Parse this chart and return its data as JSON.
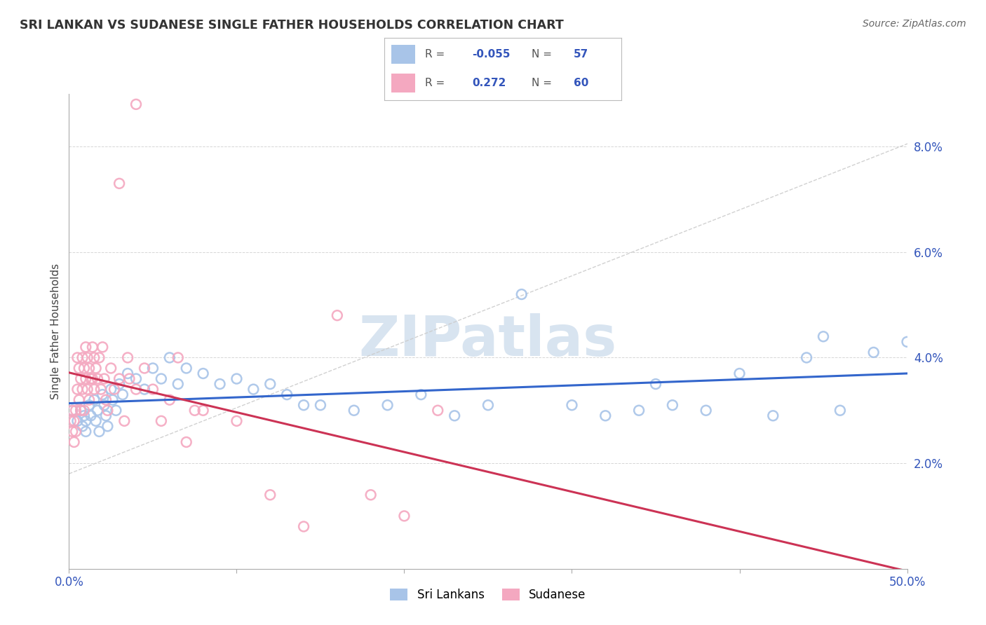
{
  "title": "SRI LANKAN VS SUDANESE SINGLE FATHER HOUSEHOLDS CORRELATION CHART",
  "source": "Source: ZipAtlas.com",
  "ylabel_label": "Single Father Households",
  "xlim": [
    0.0,
    0.5
  ],
  "ylim": [
    0.0,
    0.09
  ],
  "x_ticks": [
    0.0,
    0.1,
    0.2,
    0.3,
    0.4,
    0.5
  ],
  "x_tick_labels": [
    "0.0%",
    "",
    "",
    "",
    "",
    "50.0%"
  ],
  "y_ticks": [
    0.02,
    0.04,
    0.06,
    0.08
  ],
  "y_tick_labels": [
    "2.0%",
    "4.0%",
    "6.0%",
    "8.0%"
  ],
  "blue_R": "-0.055",
  "blue_N": "57",
  "pink_R": "0.272",
  "pink_N": "60",
  "blue_color": "#a8c4e8",
  "pink_color": "#f4a8c0",
  "blue_line_color": "#3366cc",
  "pink_line_color": "#cc3355",
  "diag_line_color": "#cccccc",
  "grid_color": "#cccccc",
  "watermark_color": "#d8e4f0",
  "tick_color": "#3355bb",
  "sri_lankans_x": [
    0.002,
    0.005,
    0.007,
    0.008,
    0.009,
    0.01,
    0.01,
    0.012,
    0.013,
    0.015,
    0.016,
    0.017,
    0.018,
    0.02,
    0.021,
    0.022,
    0.023,
    0.025,
    0.026,
    0.028,
    0.03,
    0.032,
    0.035,
    0.04,
    0.045,
    0.05,
    0.055,
    0.06,
    0.065,
    0.07,
    0.08,
    0.09,
    0.1,
    0.11,
    0.12,
    0.13,
    0.14,
    0.15,
    0.17,
    0.19,
    0.21,
    0.23,
    0.25,
    0.3,
    0.32,
    0.34,
    0.36,
    0.38,
    0.4,
    0.42,
    0.44,
    0.46,
    0.48,
    0.5,
    0.27,
    0.35,
    0.45
  ],
  "sri_lankans_y": [
    0.03,
    0.028,
    0.03,
    0.027,
    0.029,
    0.028,
    0.026,
    0.031,
    0.029,
    0.032,
    0.028,
    0.03,
    0.026,
    0.033,
    0.031,
    0.029,
    0.027,
    0.034,
    0.032,
    0.03,
    0.035,
    0.033,
    0.037,
    0.036,
    0.034,
    0.038,
    0.036,
    0.04,
    0.035,
    0.038,
    0.037,
    0.035,
    0.036,
    0.034,
    0.035,
    0.033,
    0.031,
    0.031,
    0.03,
    0.031,
    0.033,
    0.029,
    0.031,
    0.031,
    0.029,
    0.03,
    0.031,
    0.03,
    0.037,
    0.029,
    0.04,
    0.03,
    0.041,
    0.043,
    0.052,
    0.035,
    0.044
  ],
  "sudanese_x": [
    0.001,
    0.002,
    0.002,
    0.003,
    0.003,
    0.004,
    0.004,
    0.005,
    0.005,
    0.006,
    0.006,
    0.007,
    0.007,
    0.008,
    0.008,
    0.009,
    0.009,
    0.01,
    0.01,
    0.011,
    0.011,
    0.012,
    0.012,
    0.013,
    0.014,
    0.014,
    0.015,
    0.015,
    0.016,
    0.017,
    0.018,
    0.019,
    0.02,
    0.021,
    0.022,
    0.023,
    0.025,
    0.027,
    0.03,
    0.033,
    0.036,
    0.04,
    0.045,
    0.05,
    0.06,
    0.07,
    0.08,
    0.1,
    0.12,
    0.14,
    0.16,
    0.18,
    0.2,
    0.22,
    0.03,
    0.035,
    0.04,
    0.055,
    0.065,
    0.075
  ],
  "sudanese_y": [
    0.028,
    0.03,
    0.026,
    0.028,
    0.024,
    0.03,
    0.026,
    0.04,
    0.034,
    0.038,
    0.032,
    0.036,
    0.03,
    0.04,
    0.034,
    0.038,
    0.03,
    0.042,
    0.036,
    0.04,
    0.034,
    0.038,
    0.032,
    0.036,
    0.042,
    0.036,
    0.04,
    0.034,
    0.038,
    0.036,
    0.04,
    0.034,
    0.042,
    0.036,
    0.032,
    0.03,
    0.038,
    0.034,
    0.036,
    0.028,
    0.036,
    0.034,
    0.038,
    0.034,
    0.032,
    0.024,
    0.03,
    0.028,
    0.014,
    0.008,
    0.048,
    0.014,
    0.01,
    0.03,
    0.073,
    0.04,
    0.088,
    0.028,
    0.04,
    0.03
  ]
}
